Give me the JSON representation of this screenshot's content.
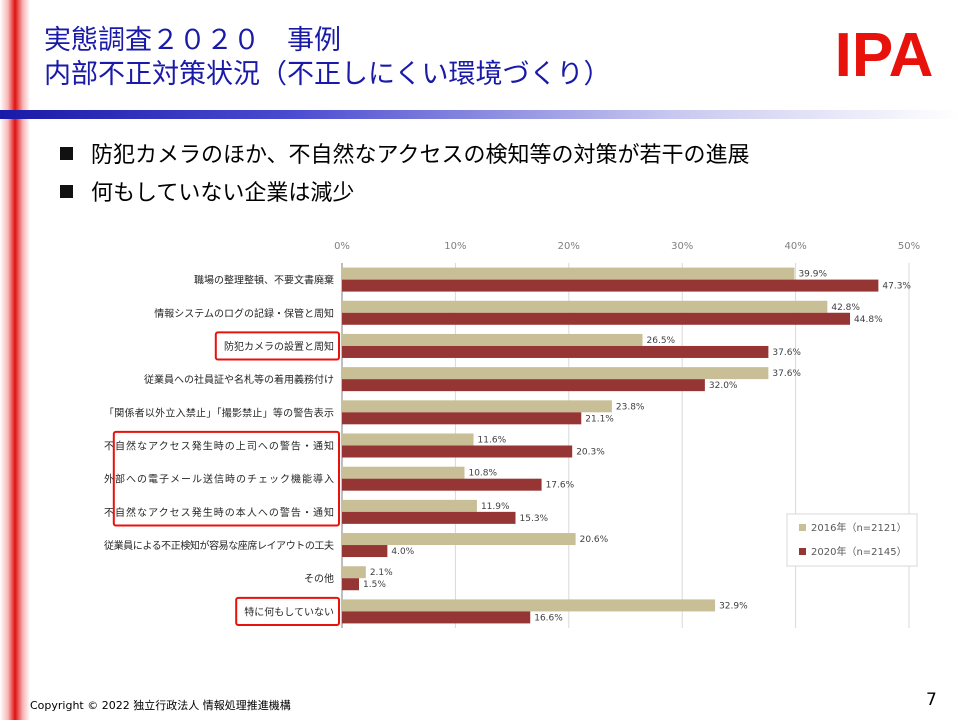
{
  "slide": {
    "title_line1": "実態調査２０２０　事例",
    "title_line2": "内部不正対策状況（不正しにくい環境づくり）",
    "logo_text": "IPA",
    "bullets": [
      "防犯カメラのほか、不自然なアクセスの検知等の対策が若干の進展",
      "何もしていない企業は減少"
    ],
    "footer": "Copyright © 2022 独立行政法人 情報処理推進機構",
    "page_number": "7",
    "colors": {
      "title": "#1a1aa8",
      "logo": "#e8120c",
      "highlight_box": "#e8120c"
    }
  },
  "chart_data": {
    "type": "bar",
    "orientation": "horizontal",
    "categories": [
      "職場の整理整頓、不要文書廃棄",
      "情報システムのログの記録・保管と周知",
      "防犯カメラの設置と周知",
      "従業員への社員証や名札等の着用義務付け",
      "「関係者以外立入禁止」「撮影禁止」等の警告表示",
      "不自然なアクセス発生時の上司への警告・通知",
      "外部への電子メール送信時のチェック機能導入",
      "不自然なアクセス発生時の本人への警告・通知",
      "従業員による不正検知が容易な座席レイアウトの工夫",
      "その他",
      "特に何もしていない"
    ],
    "series": [
      {
        "name": "2016年（n=2121）",
        "color": "#c9bf96",
        "values": [
          39.9,
          42.8,
          26.5,
          37.6,
          23.8,
          11.6,
          10.8,
          11.9,
          20.6,
          2.1,
          32.9
        ]
      },
      {
        "name": "2020年（n=2145）",
        "color": "#963634",
        "values": [
          47.3,
          44.8,
          37.6,
          32.0,
          21.1,
          20.3,
          17.6,
          15.3,
          4.0,
          1.5,
          16.6
        ]
      }
    ],
    "value_format": "percent_1dp",
    "xlim": [
      0,
      50
    ],
    "x_ticks": [
      "0%",
      "10%",
      "20%",
      "30%",
      "40%",
      "50%"
    ],
    "x_tick_values": [
      0,
      10,
      20,
      30,
      40,
      50
    ],
    "grid": true,
    "legend_position": "bottom-right",
    "highlighted_groups": [
      [
        2
      ],
      [
        5,
        6,
        7
      ],
      [
        10
      ]
    ]
  }
}
